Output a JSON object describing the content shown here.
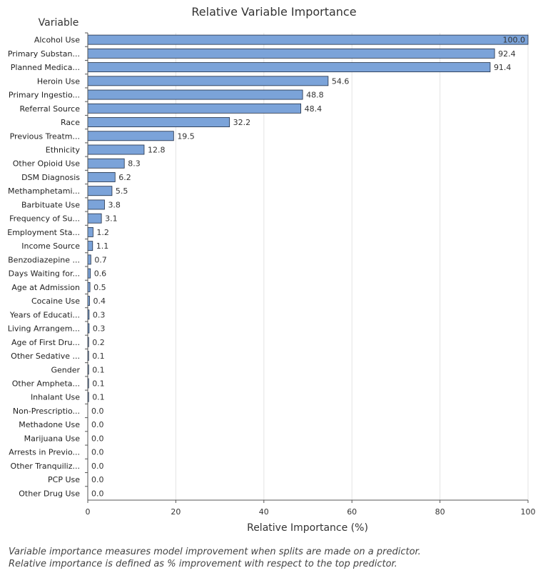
{
  "chart_data": {
    "type": "bar",
    "orientation": "horizontal",
    "title": "Relative Variable Importance",
    "ylabel": "Variable",
    "xlabel": "Relative Importance (%)",
    "xlim": [
      0,
      100
    ],
    "xticks": [
      0,
      20,
      40,
      60,
      80,
      100
    ],
    "grid": true,
    "bar_color": "#7ba3d9",
    "bar_edge_color": "#1f2d44",
    "categories": [
      "Alcohol Use",
      "Primary Substan...",
      "Planned Medica...",
      "Heroin Use",
      "Primary Ingestio...",
      "Referral Source",
      "Race",
      "Previous Treatm...",
      "Ethnicity",
      "Other Opioid Use",
      "DSM Diagnosis",
      "Methamphetami...",
      "Barbituate Use",
      "Frequency of Su...",
      "Employment Sta...",
      "Income Source",
      "Benzodiazepine ...",
      "Days Waiting for...",
      "Age at Admission",
      "Cocaine Use",
      "Years of Educati...",
      "Living Arrangem...",
      "Age of First Dru...",
      "Other Sedative ...",
      "Gender",
      "Other Ampheta...",
      "Inhalant Use",
      "Non-Prescriptio...",
      "Methadone Use",
      "Marijuana Use",
      "Arrests in Previo...",
      "Other Tranquiliz...",
      "PCP Use",
      "Other Drug Use"
    ],
    "values": [
      100.0,
      92.4,
      91.4,
      54.6,
      48.8,
      48.4,
      32.2,
      19.5,
      12.8,
      8.3,
      6.2,
      5.5,
      3.8,
      3.1,
      1.2,
      1.1,
      0.7,
      0.6,
      0.5,
      0.4,
      0.3,
      0.3,
      0.2,
      0.1,
      0.1,
      0.1,
      0.1,
      0.0,
      0.0,
      0.0,
      0.0,
      0.0,
      0.0,
      0.0
    ]
  },
  "footnotes": [
    "Variable importance measures model improvement when splits are made on a predictor.",
    "Relative importance is defined as % improvement with respect to the top predictor."
  ]
}
